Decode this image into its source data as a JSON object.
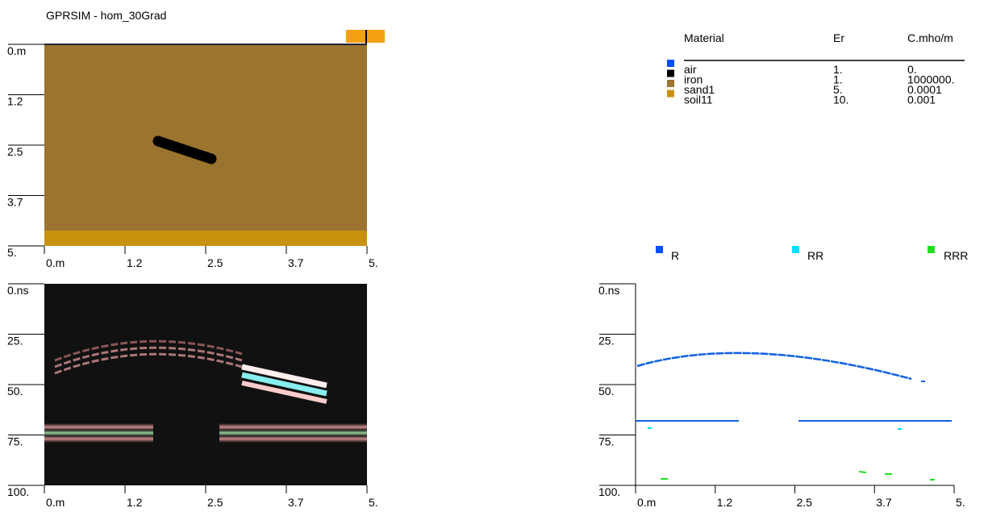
{
  "title": "GPRSIM - hom_30Grad",
  "model_panel": {
    "y_labels": [
      "0.m",
      "1.2",
      "2.5",
      "3.7",
      "5."
    ],
    "x_labels": [
      "0.m",
      "1.2",
      "2.5",
      "3.7",
      "5."
    ]
  },
  "materials": {
    "header": [
      "Material",
      "Er",
      "C.mho/m"
    ],
    "rows": [
      [
        "air",
        "1.",
        "0."
      ],
      [
        "iron",
        "1.",
        "1000000."
      ],
      [
        "sand1",
        "5.",
        "0.0001"
      ],
      [
        "soil11",
        "10.",
        "0.001"
      ]
    ]
  },
  "radargram": {
    "y_labels": [
      "0.ns",
      "25.",
      "50.",
      "75.",
      "100."
    ],
    "x_labels": [
      "0.m",
      "1.2",
      "2.5",
      "3.7",
      "5."
    ]
  },
  "legend": [
    "R",
    "RR",
    "RRR"
  ],
  "picks_panel": {
    "y_labels": [
      "0.ns",
      "25.",
      "50.",
      "75.",
      "100."
    ],
    "x_labels": [
      "0.m",
      "1.2",
      "2.5",
      "3.7",
      "5."
    ]
  }
}
